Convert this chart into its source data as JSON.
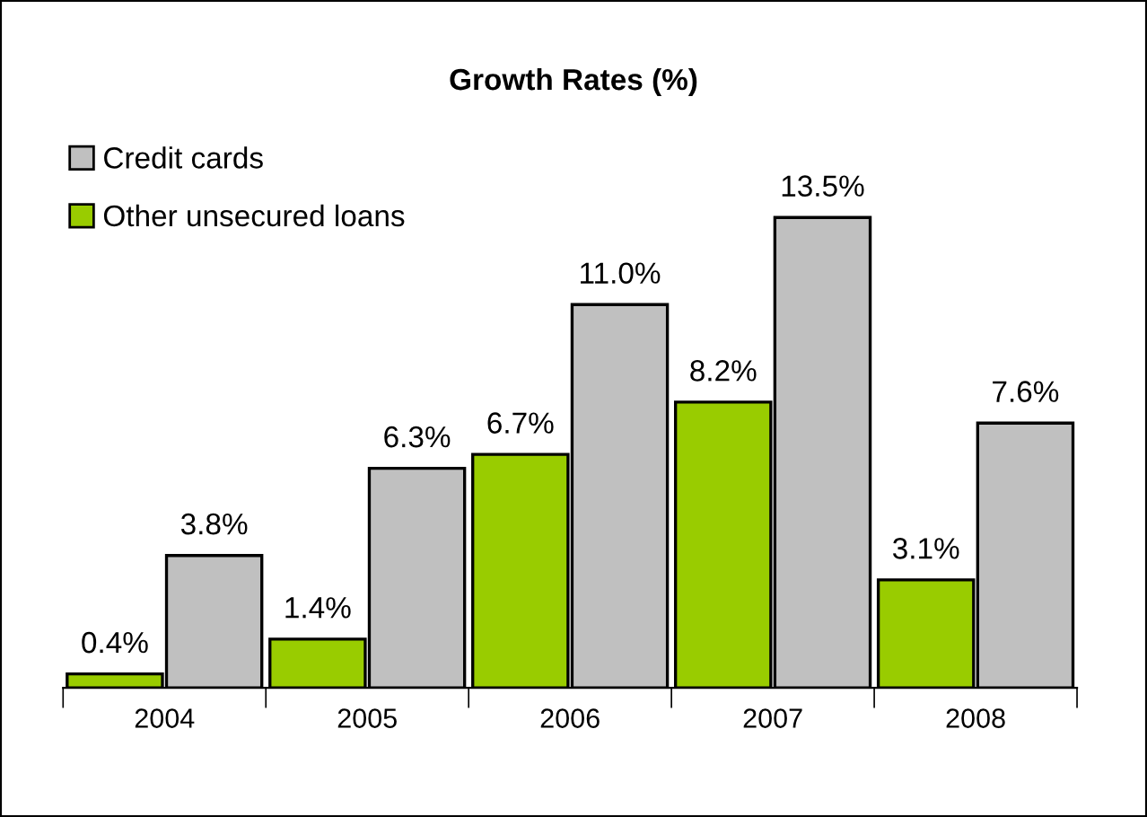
{
  "chart_data": {
    "type": "bar",
    "title": "Growth Rates (%)",
    "categories": [
      "2004",
      "2005",
      "2006",
      "2007",
      "2008"
    ],
    "series": [
      {
        "name": "Other unsecured loans",
        "color": "#99cc00",
        "values": [
          0.4,
          1.4,
          6.7,
          8.2,
          3.1
        ],
        "value_labels": [
          "0.4%",
          "1.4%",
          "6.7%",
          "8.2%",
          "3.1%"
        ]
      },
      {
        "name": "Credit cards",
        "color": "#c0c0c0",
        "values": [
          3.8,
          6.3,
          11.0,
          13.5,
          7.6
        ],
        "value_labels": [
          "3.8%",
          "6.3%",
          "11.0%",
          "13.5%",
          "7.6%"
        ]
      }
    ],
    "legend": "top left",
    "grid": false
  }
}
